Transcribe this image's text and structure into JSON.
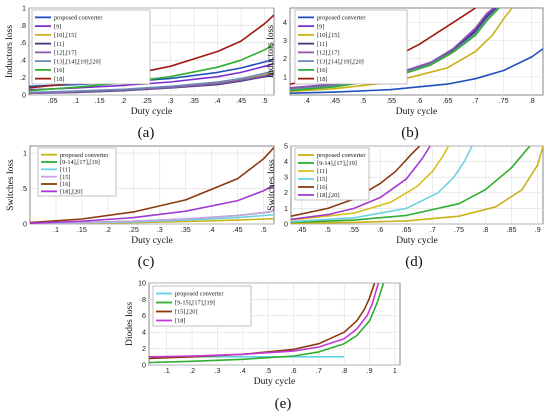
{
  "chart_data": [
    {
      "panel": "(a)",
      "type": "line",
      "xlabel": "Duty cycle",
      "ylabel": "Inductors loss",
      "xlim": [
        0,
        0.52
      ],
      "ylim": [
        0,
        1
      ],
      "xticks": [
        0.05,
        0.1,
        0.15,
        0.2,
        0.25,
        0.3,
        0.35,
        0.4,
        0.45,
        0.5
      ],
      "yticks": [
        0,
        0.2,
        0.4,
        0.6,
        0.8,
        1
      ],
      "grid": true,
      "legend": "top-left",
      "series": [
        {
          "name": "proposed converter",
          "color": "#1f4fbf",
          "x": [
            0,
            0.1,
            0.2,
            0.3,
            0.4,
            0.45,
            0.5,
            0.52
          ],
          "y": [
            0.1,
            0.12,
            0.15,
            0.19,
            0.26,
            0.31,
            0.38,
            0.41
          ]
        },
        {
          "name": "[9]",
          "color": "#7a2fd0",
          "x": [
            0,
            0.1,
            0.2,
            0.3,
            0.4,
            0.45,
            0.5,
            0.52
          ],
          "y": [
            0.06,
            0.08,
            0.11,
            0.15,
            0.21,
            0.26,
            0.33,
            0.36
          ]
        },
        {
          "name": "[10],[15]",
          "color": "#c9b31a",
          "x": [
            0,
            0.1,
            0.2,
            0.3,
            0.4,
            0.45,
            0.5,
            0.52
          ],
          "y": [
            0.02,
            0.04,
            0.06,
            0.09,
            0.14,
            0.18,
            0.23,
            0.26
          ]
        },
        {
          "name": "[11]",
          "color": "#3a3a7a",
          "x": [
            0,
            0.1,
            0.2,
            0.3,
            0.4,
            0.45,
            0.5,
            0.52
          ],
          "y": [
            0.02,
            0.03,
            0.05,
            0.08,
            0.12,
            0.16,
            0.21,
            0.24
          ]
        },
        {
          "name": "[12],[17]",
          "color": "#8a5aa8",
          "x": [
            0,
            0.1,
            0.2,
            0.3,
            0.4,
            0.45,
            0.5,
            0.52
          ],
          "y": [
            0.02,
            0.035,
            0.055,
            0.085,
            0.13,
            0.17,
            0.22,
            0.25
          ]
        },
        {
          "name": "[13],[14],[19],[20]",
          "color": "#6a8ab8",
          "x": [
            0,
            0.1,
            0.2,
            0.3,
            0.4,
            0.45,
            0.5,
            0.52
          ],
          "y": [
            0.03,
            0.045,
            0.065,
            0.1,
            0.15,
            0.19,
            0.25,
            0.28
          ]
        },
        {
          "name": "[16]",
          "color": "#2fae2f",
          "x": [
            0,
            0.1,
            0.2,
            0.3,
            0.4,
            0.45,
            0.5,
            0.52
          ],
          "y": [
            0.05,
            0.09,
            0.14,
            0.21,
            0.32,
            0.4,
            0.52,
            0.58
          ]
        },
        {
          "name": "[18]",
          "color": "#9e1b10",
          "x": [
            0,
            0.1,
            0.2,
            0.3,
            0.4,
            0.45,
            0.5,
            0.52
          ],
          "y": [
            0.08,
            0.14,
            0.22,
            0.33,
            0.5,
            0.62,
            0.82,
            0.92
          ]
        }
      ]
    },
    {
      "panel": "(b)",
      "type": "line",
      "xlabel": "Duty cycle",
      "ylabel": "Inductors loss",
      "xlim": [
        0.37,
        0.82
      ],
      "ylim": [
        0,
        4.8
      ],
      "xticks": [
        0.4,
        0.45,
        0.5,
        0.55,
        0.6,
        0.65,
        0.7,
        0.75,
        0.8
      ],
      "yticks": [
        1,
        2,
        3,
        4
      ],
      "grid": true,
      "legend": "top-left",
      "series": [
        {
          "name": "proposed converter",
          "color": "#1f4fbf",
          "x": [
            0.37,
            0.45,
            0.55,
            0.65,
            0.7,
            0.75,
            0.8,
            0.82
          ],
          "y": [
            0.1,
            0.16,
            0.3,
            0.6,
            0.9,
            1.35,
            2.1,
            2.55
          ]
        },
        {
          "name": "[9]",
          "color": "#7a2fd0",
          "x": [
            0.37,
            0.45,
            0.55,
            0.62,
            0.66,
            0.7,
            0.72,
            0.735
          ],
          "y": [
            0.4,
            0.6,
            1.1,
            1.8,
            2.5,
            3.6,
            4.4,
            4.8
          ]
        },
        {
          "name": "[10],[15]",
          "color": "#c9b31a",
          "x": [
            0.37,
            0.45,
            0.55,
            0.65,
            0.7,
            0.73,
            0.75,
            0.765
          ],
          "y": [
            0.2,
            0.35,
            0.7,
            1.5,
            2.4,
            3.3,
            4.2,
            4.8
          ]
        },
        {
          "name": "[11]",
          "color": "#3a3a7a",
          "x": [
            0.37,
            0.45,
            0.55,
            0.62,
            0.66,
            0.7,
            0.72,
            0.738
          ],
          "y": [
            0.35,
            0.55,
            1.05,
            1.75,
            2.45,
            3.5,
            4.3,
            4.8
          ]
        },
        {
          "name": "[12],[17]",
          "color": "#8a5aa8",
          "x": [
            0.37,
            0.45,
            0.55,
            0.62,
            0.66,
            0.7,
            0.72,
            0.732
          ],
          "y": [
            0.38,
            0.58,
            1.08,
            1.8,
            2.55,
            3.7,
            4.5,
            4.8
          ]
        },
        {
          "name": "[13],[14],[19],[20]",
          "color": "#6a8ab8",
          "x": [
            0.37,
            0.45,
            0.55,
            0.62,
            0.66,
            0.7,
            0.72,
            0.74
          ],
          "y": [
            0.3,
            0.5,
            1.0,
            1.7,
            2.4,
            3.4,
            4.2,
            4.8
          ]
        },
        {
          "name": "[16]",
          "color": "#2fae2f",
          "x": [
            0.37,
            0.45,
            0.55,
            0.62,
            0.66,
            0.7,
            0.72,
            0.742
          ],
          "y": [
            0.25,
            0.45,
            0.95,
            1.65,
            2.35,
            3.3,
            4.1,
            4.8
          ]
        },
        {
          "name": "[18]",
          "color": "#9e1b10",
          "x": [
            0.37,
            0.45,
            0.55,
            0.6,
            0.64,
            0.67,
            0.69,
            0.7
          ],
          "y": [
            0.6,
            1.0,
            2.0,
            2.8,
            3.6,
            4.2,
            4.6,
            4.8
          ]
        }
      ]
    },
    {
      "panel": "(c)",
      "type": "line",
      "xlabel": "Duty cycle",
      "ylabel": "Switches loss",
      "xlim": [
        0.05,
        0.52
      ],
      "ylim": [
        0,
        1.1
      ],
      "xticks": [
        0.1,
        0.15,
        0.2,
        0.25,
        0.3,
        0.35,
        0.4,
        0.45,
        0.5
      ],
      "yticks": [
        0,
        0.5,
        1
      ],
      "grid": true,
      "legend": "top-left",
      "series": [
        {
          "name": "proposed converter",
          "color": "#c9b31a",
          "x": [
            0.05,
            0.15,
            0.25,
            0.35,
            0.45,
            0.5,
            0.52
          ],
          "y": [
            0.005,
            0.01,
            0.02,
            0.035,
            0.055,
            0.07,
            0.075
          ]
        },
        {
          "name": "[9-14],[17],[19]",
          "color": "#2fae2f",
          "x": [
            0.05,
            0.15,
            0.25,
            0.35,
            0.45,
            0.5,
            0.52
          ],
          "y": [
            0.01,
            0.02,
            0.04,
            0.07,
            0.12,
            0.16,
            0.18
          ]
        },
        {
          "name": "[11]",
          "color": "#6fd0e0",
          "x": [
            0.05,
            0.15,
            0.25,
            0.35,
            0.45,
            0.5,
            0.52
          ],
          "y": [
            0.008,
            0.015,
            0.03,
            0.055,
            0.09,
            0.12,
            0.13
          ]
        },
        {
          "name": "[15]",
          "color": "#c8a0e8",
          "x": [
            0.05,
            0.15,
            0.25,
            0.35,
            0.45,
            0.5,
            0.52
          ],
          "y": [
            0.01,
            0.02,
            0.04,
            0.07,
            0.12,
            0.16,
            0.18
          ]
        },
        {
          "name": "[16]",
          "color": "#8b3a0e",
          "x": [
            0.05,
            0.15,
            0.25,
            0.35,
            0.45,
            0.5,
            0.52
          ],
          "y": [
            0.02,
            0.07,
            0.17,
            0.34,
            0.64,
            0.92,
            1.08
          ]
        },
        {
          "name": "[18],[20]",
          "color": "#a43ad0",
          "x": [
            0.05,
            0.15,
            0.25,
            0.35,
            0.45,
            0.5,
            0.52
          ],
          "y": [
            0.01,
            0.04,
            0.09,
            0.18,
            0.33,
            0.47,
            0.54
          ]
        }
      ]
    },
    {
      "panel": "(d)",
      "type": "line",
      "xlabel": "Duty cycle",
      "ylabel": "Switches loss",
      "xlim": [
        0.43,
        0.91
      ],
      "ylim": [
        0,
        5
      ],
      "xticks": [
        0.45,
        0.5,
        0.55,
        0.6,
        0.65,
        0.7,
        0.75,
        0.8,
        0.85,
        0.9
      ],
      "yticks": [
        0,
        1,
        2,
        3,
        4,
        5
      ],
      "grid": true,
      "legend": "top-left",
      "series": [
        {
          "name": "proposed converter",
          "color": "#c9b31a",
          "x": [
            0.43,
            0.55,
            0.65,
            0.75,
            0.82,
            0.87,
            0.9,
            0.91
          ],
          "y": [
            0.05,
            0.1,
            0.2,
            0.5,
            1.1,
            2.2,
            3.8,
            5.0
          ]
        },
        {
          "name": "[9-14],[17],[19]",
          "color": "#2fae2f",
          "x": [
            0.43,
            0.55,
            0.65,
            0.75,
            0.8,
            0.85,
            0.875,
            0.885
          ],
          "y": [
            0.1,
            0.25,
            0.55,
            1.3,
            2.2,
            3.6,
            4.6,
            5.0
          ]
        },
        {
          "name": "[11]",
          "color": "#d8c01a",
          "x": [
            0.43,
            0.55,
            0.62,
            0.67,
            0.7,
            0.72,
            0.73
          ],
          "y": [
            0.25,
            0.7,
            1.4,
            2.4,
            3.4,
            4.4,
            5.0
          ]
        },
        {
          "name": "[15]",
          "color": "#6fd0e0",
          "x": [
            0.43,
            0.55,
            0.65,
            0.71,
            0.74,
            0.76,
            0.775
          ],
          "y": [
            0.15,
            0.4,
            1.0,
            2.0,
            3.0,
            4.0,
            5.0
          ]
        },
        {
          "name": "[16]",
          "color": "#8b3a0e",
          "x": [
            0.43,
            0.5,
            0.55,
            0.6,
            0.63,
            0.66,
            0.675
          ],
          "y": [
            0.5,
            1.0,
            1.6,
            2.6,
            3.4,
            4.5,
            5.0
          ]
        },
        {
          "name": "[18],[20]",
          "color": "#a43ad0",
          "x": [
            0.43,
            0.5,
            0.55,
            0.6,
            0.65,
            0.68,
            0.695
          ],
          "y": [
            0.3,
            0.6,
            1.0,
            1.7,
            2.9,
            4.2,
            5.0
          ]
        }
      ]
    },
    {
      "panel": "(e)",
      "type": "line",
      "xlabel": "Duty cycle",
      "ylabel": "Diodes loss",
      "xlim": [
        0.03,
        1.02
      ],
      "ylim": [
        0,
        10
      ],
      "xticks": [
        0.1,
        0.2,
        0.3,
        0.4,
        0.5,
        0.6,
        0.7,
        0.8,
        0.9,
        1
      ],
      "yticks": [
        0,
        2,
        4,
        6,
        8,
        10
      ],
      "grid": true,
      "legend": "top-left",
      "series": [
        {
          "name": "proposed converter",
          "color": "#5fd2e6",
          "x": [
            0.03,
            0.2,
            0.4,
            0.6,
            0.8
          ],
          "y": [
            1.0,
            1.0,
            1.0,
            1.0,
            1.0
          ]
        },
        {
          "name": "[9-15],[17],[19]",
          "color": "#2fae2f",
          "x": [
            0.03,
            0.2,
            0.4,
            0.6,
            0.7,
            0.8,
            0.85,
            0.9,
            0.93,
            0.955
          ],
          "y": [
            0.3,
            0.45,
            0.7,
            1.1,
            1.6,
            2.6,
            3.6,
            5.4,
            7.6,
            10
          ]
        },
        {
          "name": "[15],[20]",
          "color": "#8b3a0e",
          "x": [
            0.03,
            0.2,
            0.4,
            0.6,
            0.7,
            0.8,
            0.85,
            0.88,
            0.9,
            0.92
          ],
          "y": [
            0.8,
            1.0,
            1.3,
            1.9,
            2.6,
            4.0,
            5.4,
            6.8,
            8.2,
            10
          ]
        },
        {
          "name": "[18]",
          "color": "#c838d8",
          "x": [
            0.03,
            0.2,
            0.4,
            0.6,
            0.7,
            0.8,
            0.85,
            0.89,
            0.91,
            0.935
          ],
          "y": [
            1.0,
            1.1,
            1.3,
            1.7,
            2.2,
            3.2,
            4.4,
            6.0,
            7.4,
            10
          ]
        }
      ]
    }
  ]
}
